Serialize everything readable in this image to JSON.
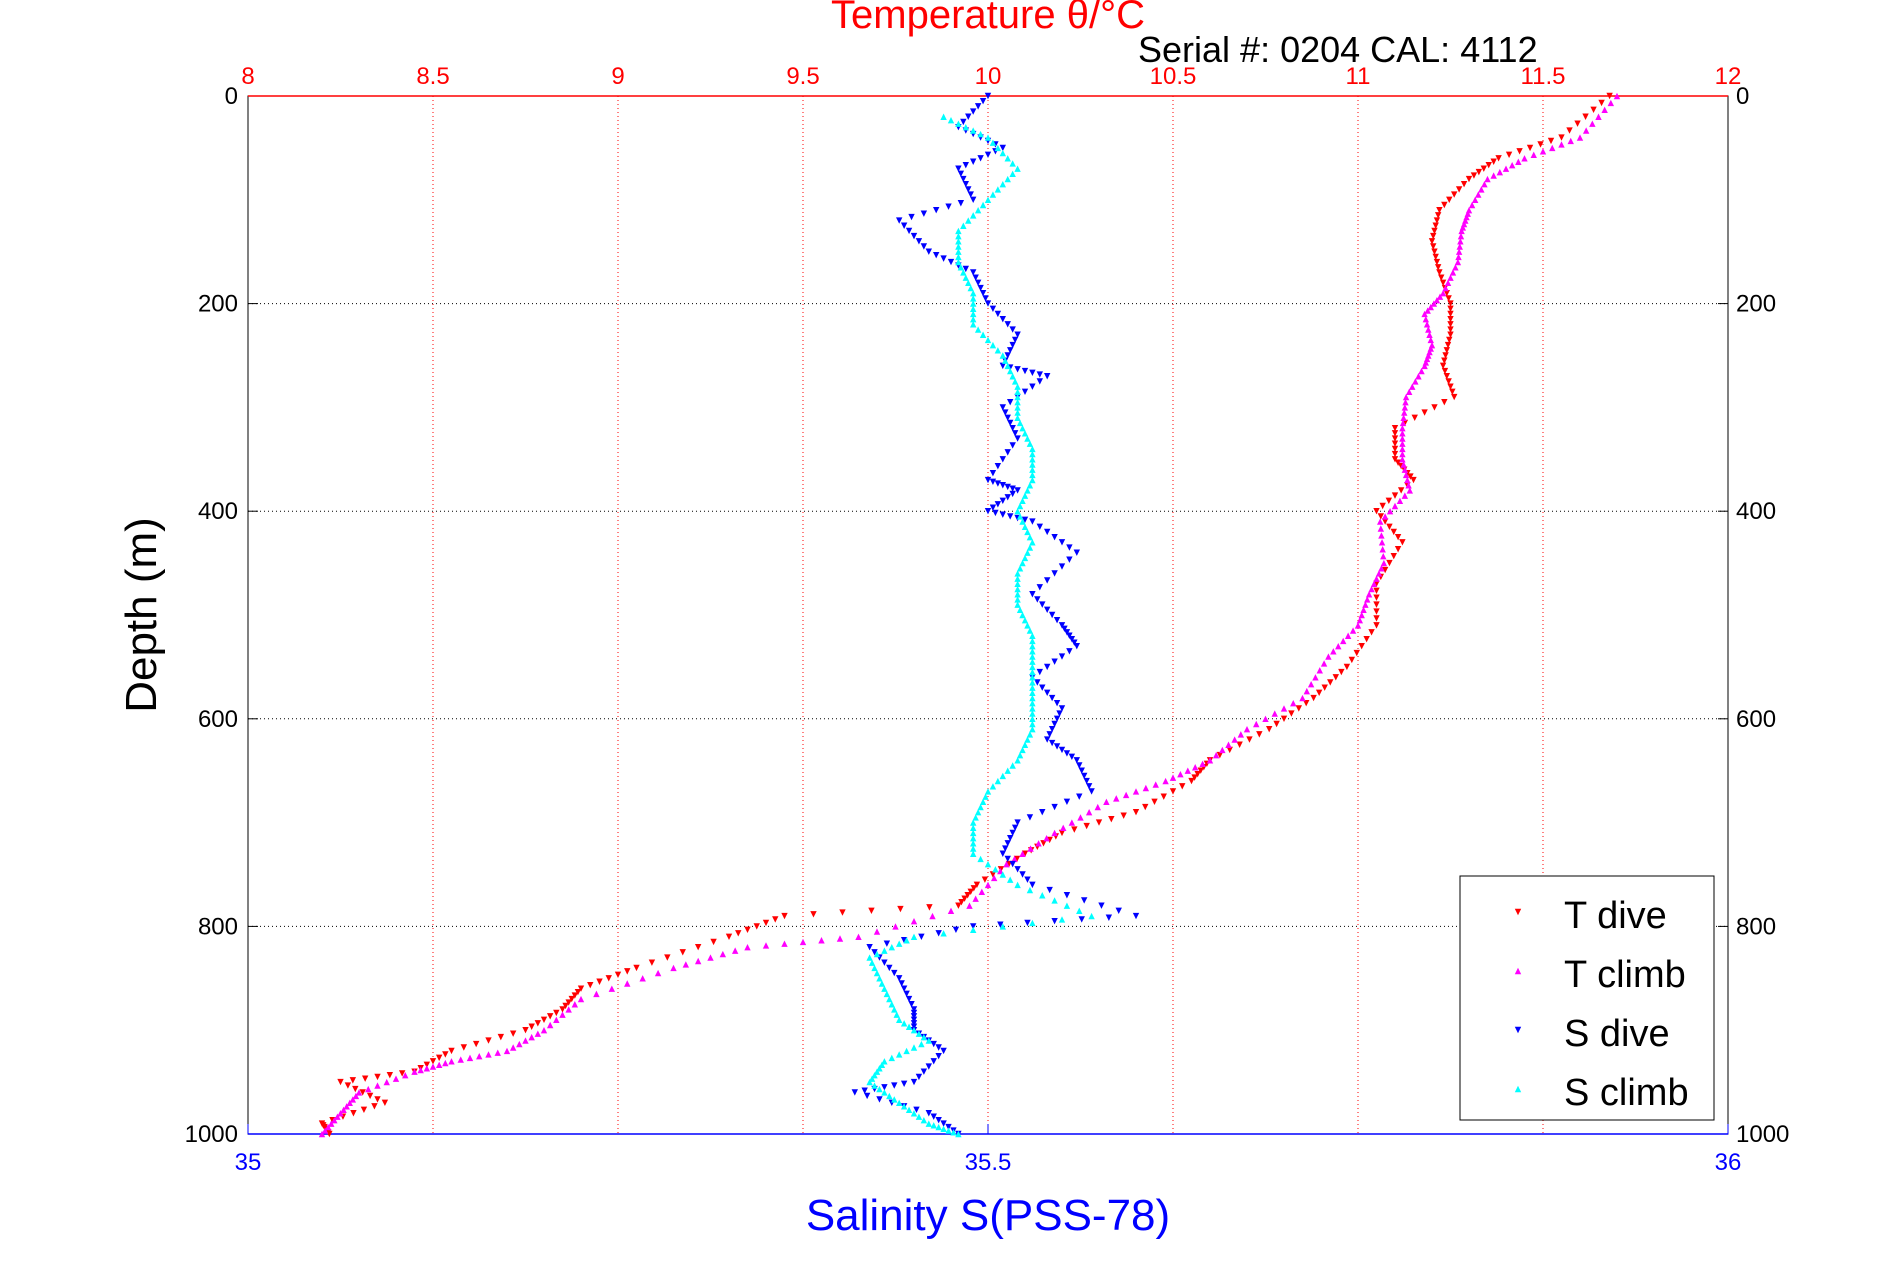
{
  "chart_data": {
    "type": "scatter",
    "title": "Temperature θ/°C",
    "subtitle": "Serial #: 0204  CAL: 4112",
    "ylabel": "Depth (m)",
    "xlabel": "Salinity S(PSS-78)",
    "xlabel_top": "Temperature θ/°C",
    "y_reversed": true,
    "ylim": [
      0,
      1000
    ],
    "y_ticks": [
      "0",
      "200",
      "400",
      "600",
      "800",
      "1000"
    ],
    "x_bottom_lim": [
      35,
      36
    ],
    "x_bottom_ticks": [
      "35",
      "35.5",
      "36"
    ],
    "x_top_lim": [
      8,
      12
    ],
    "x_top_ticks": [
      "8",
      "8.5",
      "9",
      "9.5",
      "10",
      "10.5",
      "11",
      "11.5",
      "12"
    ],
    "grid": true,
    "legend_position": "bottom-right",
    "colors": {
      "temperature_axis": "#ff0000",
      "salinity_axis": "#0000ff",
      "grid_top": "#ff0000",
      "grid_depth": "#000000"
    },
    "series": [
      {
        "name": "T dive",
        "axis": "top",
        "color": "#ff0000",
        "marker": "triangle-down",
        "points": [
          [
            11.68,
            0
          ],
          [
            11.55,
            40
          ],
          [
            11.38,
            60
          ],
          [
            11.3,
            80
          ],
          [
            11.22,
            110
          ],
          [
            11.2,
            140
          ],
          [
            11.22,
            170
          ],
          [
            11.25,
            200
          ],
          [
            11.25,
            230
          ],
          [
            11.23,
            260
          ],
          [
            11.26,
            290
          ],
          [
            11.1,
            320
          ],
          [
            11.1,
            350
          ],
          [
            11.15,
            370
          ],
          [
            11.05,
            400
          ],
          [
            11.12,
            430
          ],
          [
            11.05,
            470
          ],
          [
            11.05,
            510
          ],
          [
            10.97,
            550
          ],
          [
            10.88,
            580
          ],
          [
            10.76,
            610
          ],
          [
            10.6,
            640
          ],
          [
            10.55,
            660
          ],
          [
            10.4,
            690
          ],
          [
            10.2,
            710
          ],
          [
            10.1,
            730
          ],
          [
            9.97,
            760
          ],
          [
            9.92,
            780
          ],
          [
            9.45,
            790
          ],
          [
            9.3,
            810
          ],
          [
            9.05,
            840
          ],
          [
            8.9,
            860
          ],
          [
            8.85,
            880
          ],
          [
            8.75,
            900
          ],
          [
            8.55,
            920
          ],
          [
            8.45,
            940
          ],
          [
            8.25,
            950
          ],
          [
            8.37,
            970
          ],
          [
            8.2,
            990
          ],
          [
            8.22,
            1000
          ]
        ]
      },
      {
        "name": "T climb",
        "axis": "top",
        "color": "#ff00ff",
        "marker": "triangle-up",
        "points": [
          [
            11.7,
            0
          ],
          [
            11.6,
            40
          ],
          [
            11.45,
            60
          ],
          [
            11.35,
            80
          ],
          [
            11.3,
            110
          ],
          [
            11.28,
            130
          ],
          [
            11.27,
            160
          ],
          [
            11.23,
            190
          ],
          [
            11.18,
            210
          ],
          [
            11.2,
            240
          ],
          [
            11.18,
            260
          ],
          [
            11.13,
            290
          ],
          [
            11.12,
            320
          ],
          [
            11.12,
            350
          ],
          [
            11.14,
            380
          ],
          [
            11.06,
            410
          ],
          [
            11.07,
            450
          ],
          [
            11.03,
            480
          ],
          [
            11.0,
            510
          ],
          [
            10.92,
            540
          ],
          [
            10.85,
            580
          ],
          [
            10.7,
            610
          ],
          [
            10.6,
            640
          ],
          [
            10.48,
            660
          ],
          [
            10.32,
            680
          ],
          [
            10.18,
            710
          ],
          [
            10.05,
            740
          ],
          [
            9.95,
            780
          ],
          [
            9.65,
            810
          ],
          [
            9.35,
            820
          ],
          [
            9.15,
            840
          ],
          [
            8.9,
            870
          ],
          [
            8.8,
            900
          ],
          [
            8.7,
            920
          ],
          [
            8.55,
            930
          ],
          [
            8.45,
            940
          ],
          [
            8.3,
            960
          ],
          [
            8.25,
            980
          ],
          [
            8.2,
            1000
          ]
        ]
      },
      {
        "name": "S dive",
        "axis": "bottom",
        "color": "#0000ff",
        "marker": "triangle-down",
        "points": [
          [
            35.5,
            0
          ],
          [
            35.48,
            30
          ],
          [
            35.51,
            50
          ],
          [
            35.48,
            70
          ],
          [
            35.49,
            100
          ],
          [
            35.44,
            120
          ],
          [
            35.46,
            150
          ],
          [
            35.49,
            170
          ],
          [
            35.5,
            200
          ],
          [
            35.52,
            230
          ],
          [
            35.51,
            260
          ],
          [
            35.54,
            270
          ],
          [
            35.51,
            300
          ],
          [
            35.52,
            330
          ],
          [
            35.5,
            370
          ],
          [
            35.52,
            380
          ],
          [
            35.5,
            400
          ],
          [
            35.53,
            410
          ],
          [
            35.56,
            440
          ],
          [
            35.53,
            480
          ],
          [
            35.55,
            510
          ],
          [
            35.56,
            530
          ],
          [
            35.53,
            560
          ],
          [
            35.55,
            590
          ],
          [
            35.54,
            620
          ],
          [
            35.56,
            640
          ],
          [
            35.57,
            670
          ],
          [
            35.52,
            700
          ],
          [
            35.51,
            730
          ],
          [
            35.53,
            760
          ],
          [
            35.6,
            790
          ],
          [
            35.49,
            800
          ],
          [
            35.42,
            820
          ],
          [
            35.44,
            850
          ],
          [
            35.45,
            880
          ],
          [
            35.45,
            900
          ],
          [
            35.47,
            920
          ],
          [
            35.45,
            950
          ],
          [
            35.41,
            960
          ],
          [
            35.46,
            980
          ],
          [
            35.48,
            1000
          ]
        ]
      },
      {
        "name": "S climb",
        "axis": "bottom",
        "color": "#00ffff",
        "marker": "triangle-up",
        "points": [
          [
            35.47,
            20
          ],
          [
            35.5,
            40
          ],
          [
            35.52,
            70
          ],
          [
            35.5,
            100
          ],
          [
            35.48,
            130
          ],
          [
            35.48,
            160
          ],
          [
            35.49,
            190
          ],
          [
            35.49,
            220
          ],
          [
            35.51,
            250
          ],
          [
            35.52,
            280
          ],
          [
            35.52,
            310
          ],
          [
            35.53,
            340
          ],
          [
            35.53,
            370
          ],
          [
            35.52,
            400
          ],
          [
            35.53,
            430
          ],
          [
            35.52,
            460
          ],
          [
            35.52,
            490
          ],
          [
            35.53,
            520
          ],
          [
            35.53,
            550
          ],
          [
            35.53,
            580
          ],
          [
            35.53,
            610
          ],
          [
            35.52,
            640
          ],
          [
            35.5,
            670
          ],
          [
            35.49,
            700
          ],
          [
            35.49,
            730
          ],
          [
            35.52,
            760
          ],
          [
            35.57,
            790
          ],
          [
            35.45,
            810
          ],
          [
            35.42,
            830
          ],
          [
            35.43,
            860
          ],
          [
            35.44,
            890
          ],
          [
            35.46,
            910
          ],
          [
            35.43,
            930
          ],
          [
            35.42,
            950
          ],
          [
            35.44,
            970
          ],
          [
            35.46,
            990
          ],
          [
            35.48,
            1000
          ]
        ]
      }
    ]
  }
}
